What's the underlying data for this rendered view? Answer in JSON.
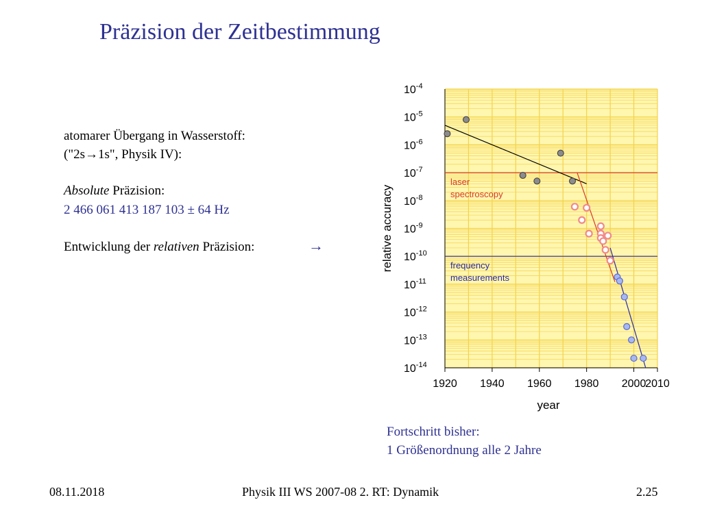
{
  "slide": {
    "title": "Präzision der Zeitbestimmung",
    "left_text": {
      "line1": "atomarer Übergang in Wasserstoff:",
      "line2": "(\"2s→1s\", Physik IV):",
      "absolute_italic": "Absolute",
      "absolute_rest": " Präzision:",
      "value": "2 466 061 413 187 103 ± 64 Hz",
      "dev_pre": "Entwicklung der ",
      "dev_italic": "relativen",
      "dev_post": " Präzision:",
      "arrow": "→"
    },
    "progress": {
      "line1": "Fortschritt bisher:",
      "line2": "1 Größenordnung alle 2 Jahre"
    },
    "footer": {
      "date": "08.11.2018",
      "course": "Physik III WS 2007-08 2. RT: Dynamik",
      "page": "2.25"
    },
    "colors": {
      "title": "#2e3192",
      "chart_background": "#fff6b0",
      "grid": "#f3d34a",
      "laser_line": "#d63a2a",
      "frequency_line": "#2a2aa8",
      "gray_points": "#8c8c8c",
      "pink_points": "#f08a8a",
      "blue_points": "#a8b8f0"
    }
  },
  "chart_data": {
    "type": "scatter",
    "xlabel": "year",
    "ylabel": "relative accuracy",
    "x_ticks": [
      1920,
      1940,
      1960,
      1980,
      2000,
      2010
    ],
    "xlim": [
      1920,
      2010
    ],
    "y_scale": "log",
    "ylim": [
      1e-14,
      0.0001
    ],
    "y_tick_labels": [
      {
        "base": "10",
        "exp": "-4"
      },
      {
        "base": "10",
        "exp": "-5"
      },
      {
        "base": "10",
        "exp": "-6"
      },
      {
        "base": "10",
        "exp": "-7"
      },
      {
        "base": "10",
        "exp": "-8"
      },
      {
        "base": "10",
        "exp": "-9"
      },
      {
        "base": "10",
        "exp": "-10"
      },
      {
        "base": "10",
        "exp": "-11"
      },
      {
        "base": "10",
        "exp": "-12"
      },
      {
        "base": "10",
        "exp": "-13"
      },
      {
        "base": "10",
        "exp": "-14"
      }
    ],
    "grid": true,
    "reference_lines": [
      {
        "label_line1": "laser",
        "label_line2": "spectroscopy",
        "y": 1e-07
      },
      {
        "label_line1": "frequency",
        "label_line2": "measurements",
        "y": 1e-10
      }
    ],
    "series": [
      {
        "x": [
          1921,
          1929,
          1953,
          1959,
          1969,
          1974
        ],
        "y": [
          2.5e-06,
          8e-06,
          8e-08,
          5e-08,
          5e-07,
          5e-08
        ]
      },
      {
        "x": [
          1975,
          1978,
          1980,
          1981,
          1986,
          1986,
          1986,
          1987,
          1988,
          1989,
          1990
        ],
        "y": [
          6e-09,
          2e-09,
          5.5e-09,
          6.5e-10,
          1.2e-09,
          6.5e-10,
          4.5e-10,
          3.5e-10,
          1.7e-10,
          5.5e-10,
          7e-11
        ]
      },
      {
        "x": [
          1993,
          1994,
          1996,
          1997,
          1999,
          2000,
          2004
        ],
        "y": [
          1.8e-11,
          1.3e-11,
          3.5e-12,
          3e-13,
          1e-13,
          2.2e-14,
          2.2e-14
        ]
      }
    ],
    "trend_lines": [
      {
        "x": [
          1920,
          1980
        ],
        "y": [
          5e-06,
          4e-08
        ]
      },
      {
        "x": [
          1976,
          1992
        ],
        "y": [
          1e-07,
          1.2e-11
        ]
      },
      {
        "x": [
          1990,
          2005
        ],
        "y": [
          2e-10,
          1e-14
        ]
      }
    ]
  }
}
